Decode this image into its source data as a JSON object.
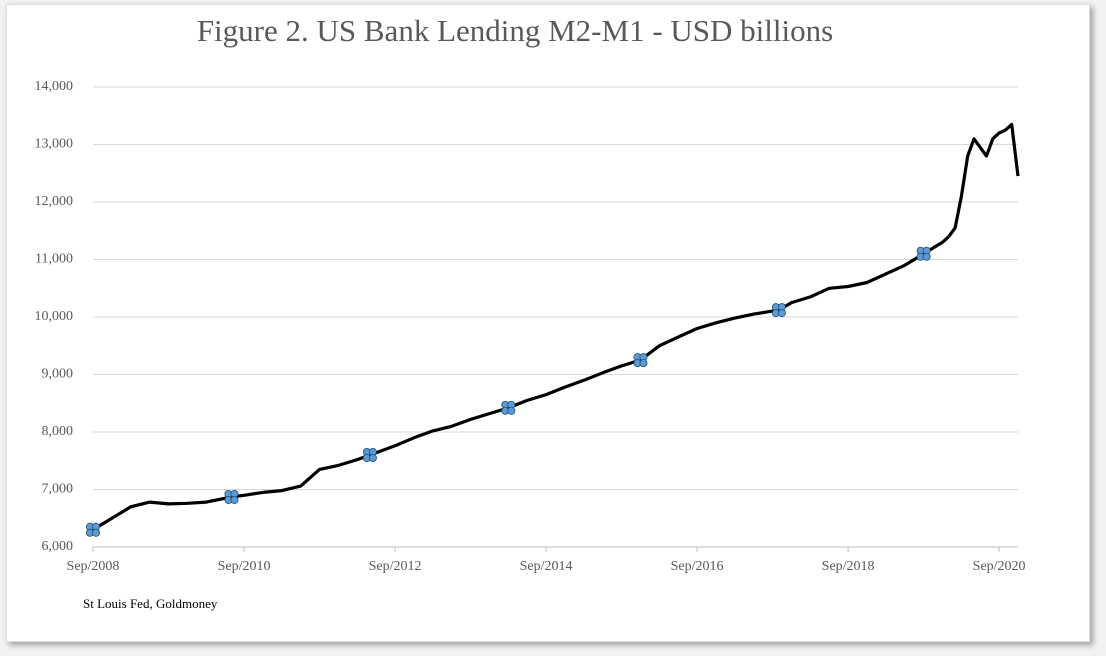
{
  "chart_data": {
    "type": "line",
    "title": "Figure 2. US Bank Lending M2-M1 - USD billions",
    "source": "St Louis Fed, Goldmoney",
    "xlim": [
      "2008-09",
      "2020-12"
    ],
    "xticks": [
      {
        "value": "2008-09",
        "label": "Sep/2008"
      },
      {
        "value": "2010-09",
        "label": "Sep/2010"
      },
      {
        "value": "2012-09",
        "label": "Sep/2012"
      },
      {
        "value": "2014-09",
        "label": "Sep/2014"
      },
      {
        "value": "2016-09",
        "label": "Sep/2016"
      },
      {
        "value": "2018-09",
        "label": "Sep/2018"
      },
      {
        "value": "2020-09",
        "label": "Sep/2020"
      }
    ],
    "ylim": [
      6000,
      14000
    ],
    "yticks": [
      {
        "value": 6000,
        "label": "6,000"
      },
      {
        "value": 7000,
        "label": "7,000"
      },
      {
        "value": 8000,
        "label": "8,000"
      },
      {
        "value": 9000,
        "label": "9,000"
      },
      {
        "value": 10000,
        "label": "10,000"
      },
      {
        "value": 11000,
        "label": "11,000"
      },
      {
        "value": 12000,
        "label": "12,000"
      },
      {
        "value": 13000,
        "label": "13,000"
      },
      {
        "value": 14000,
        "label": "14,000"
      }
    ],
    "grid": true,
    "series": [
      {
        "color": "#000000",
        "x": [
          "2008-09",
          "2008-12",
          "2009-03",
          "2009-06",
          "2009-09",
          "2009-12",
          "2010-03",
          "2010-07",
          "2010-09",
          "2010-12",
          "2011-03",
          "2011-06",
          "2011-09",
          "2011-12",
          "2012-03",
          "2012-05",
          "2012-09",
          "2012-12",
          "2013-03",
          "2013-06",
          "2013-09",
          "2013-12",
          "2014-03",
          "2014-06",
          "2014-09",
          "2014-12",
          "2015-03",
          "2015-06",
          "2015-09",
          "2015-12",
          "2016-03",
          "2016-06",
          "2016-09",
          "2016-12",
          "2017-03",
          "2017-06",
          "2017-10",
          "2017-12",
          "2018-03",
          "2018-06",
          "2018-09",
          "2018-12",
          "2019-03",
          "2019-06",
          "2019-09",
          "2019-12",
          "2020-01",
          "2020-02",
          "2020-03",
          "2020-04",
          "2020-05",
          "2020-06",
          "2020-07",
          "2020-08",
          "2020-09",
          "2020-10",
          "2020-11",
          "2020-12"
        ],
        "values": [
          6300,
          6500,
          6700,
          6780,
          6750,
          6760,
          6780,
          6870,
          6900,
          6950,
          6980,
          7060,
          7350,
          7420,
          7520,
          7600,
          7760,
          7900,
          8020,
          8100,
          8220,
          8320,
          8420,
          8550,
          8650,
          8780,
          8900,
          9030,
          9150,
          9250,
          9500,
          9650,
          9800,
          9900,
          9980,
          10050,
          10120,
          10250,
          10350,
          10500,
          10530,
          10600,
          10750,
          10900,
          11100,
          11300,
          11400,
          11550,
          12100,
          12800,
          13100,
          12950,
          12800,
          13100,
          13200,
          13250,
          13350,
          12450
        ]
      }
    ],
    "markers": {
      "color": "#5b9bd5",
      "x": [
        "2008-09",
        "2010-07",
        "2012-05",
        "2014-03",
        "2015-12",
        "2017-10",
        "2019-09"
      ],
      "values": [
        6300,
        6870,
        7600,
        8420,
        9250,
        10120,
        11100
      ]
    }
  }
}
